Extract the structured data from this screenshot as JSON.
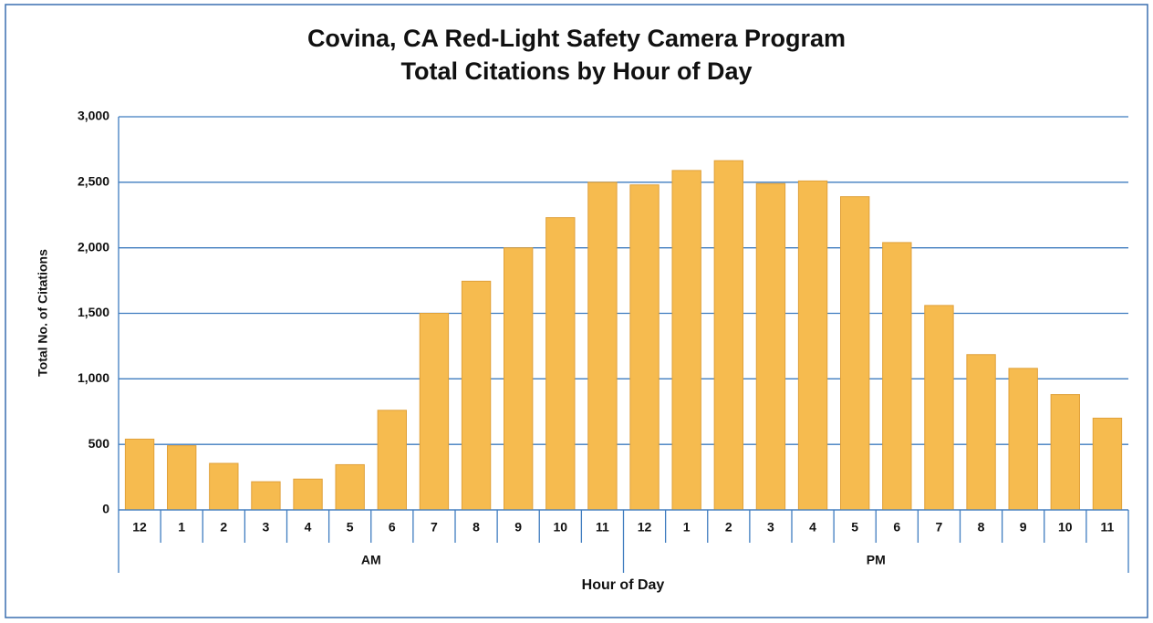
{
  "chart_data": {
    "type": "bar",
    "title": "Covina, CA Red-Light Safety Camera Program",
    "subtitle": "Total Citations by Hour of Day",
    "y_label": "Total No. of Citations",
    "x_label": "Hour of Day",
    "color": "#f6bb4f",
    "groups": [
      {
        "label": "AM",
        "categories": [
          "12",
          "1",
          "2",
          "3",
          "4",
          "5",
          "6",
          "7",
          "8",
          "9",
          "10",
          "11"
        ],
        "values": [
          540,
          490,
          355,
          215,
          235,
          345,
          760,
          1500,
          1745,
          2000,
          2230,
          2500
        ]
      },
      {
        "label": "PM",
        "categories": [
          "12",
          "1",
          "2",
          "3",
          "4",
          "5",
          "6",
          "7",
          "8",
          "9",
          "10",
          "11"
        ],
        "values": [
          2480,
          2590,
          2665,
          2490,
          2510,
          2390,
          2040,
          1560,
          1185,
          1080,
          880,
          700
        ]
      }
    ],
    "ylim": [
      0,
      3000
    ],
    "yticks": [
      0,
      500,
      {
        "value": 1000,
        "label": "1,000"
      },
      {
        "value": 1500,
        "label": "1,500"
      },
      {
        "value": 2000,
        "label": "2,000"
      },
      {
        "value": 2500,
        "label": "2,500"
      },
      {
        "value": 3000,
        "label": "3,000"
      }
    ],
    "grid": true
  }
}
